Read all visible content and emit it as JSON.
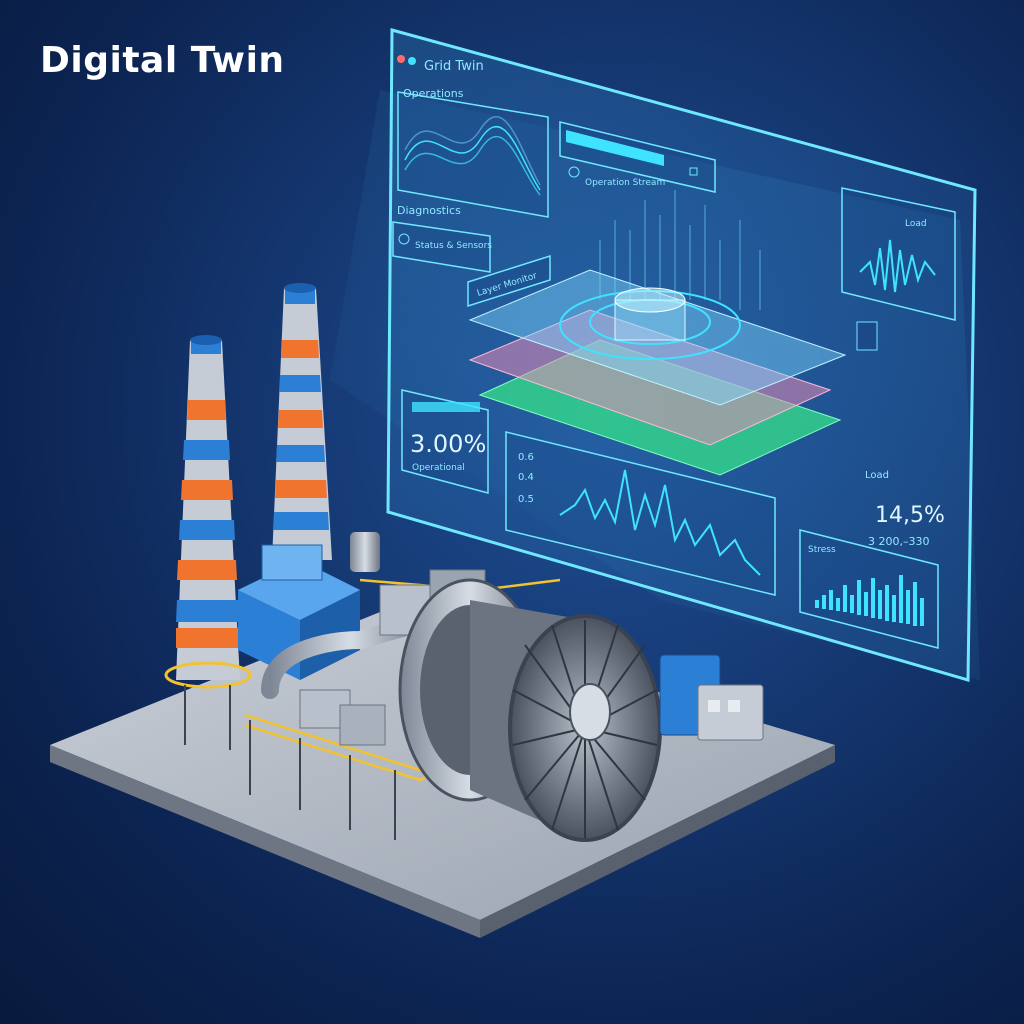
{
  "page": {
    "title": "Digital Twin"
  },
  "dashboard": {
    "panel_top_title": "Grid Twin",
    "panel_left_title": "Operations",
    "panel_left2_title": "Diagnostics",
    "panel_left2_sub": "Status & Sensors",
    "top_center_sub": "Operation Stream",
    "layer_label": "Layer Monitor",
    "kpi_left_value": "3.00%",
    "kpi_left_sub": "Operational",
    "kpi_right_label": "Load",
    "kpi_right_value": "14,5%",
    "kpi_right_range": "3 200,–330",
    "chart_mid_labels": [
      "0.6",
      "0.4",
      "0.5"
    ],
    "chart_right_title": "Stress",
    "wave_panel_label": "Load"
  },
  "colors": {
    "accent": "#3fe3ff",
    "layer_blue": "#7fd6ff",
    "layer_pink": "#e58bb6",
    "layer_green": "#35e38a",
    "stack_orange": "#f0732e",
    "stack_blue": "#2b7fd4"
  },
  "icons": [
    "window-dots-icon",
    "search-icon",
    "settings-icon",
    "refresh-icon"
  ]
}
